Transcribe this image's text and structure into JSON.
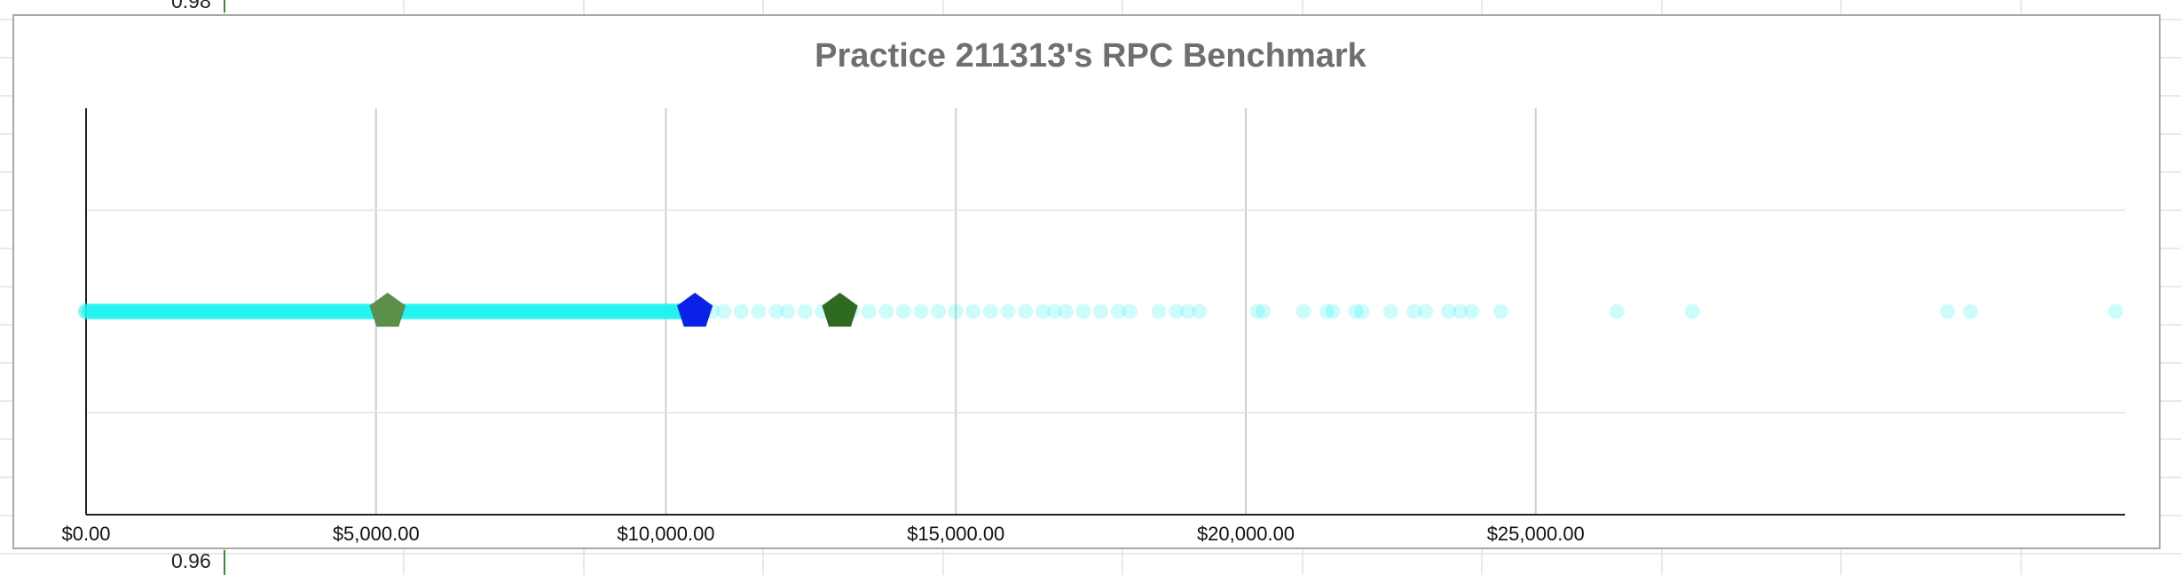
{
  "spreadsheet": {
    "row_labels": [
      "0.98",
      "0.96"
    ]
  },
  "colors": {
    "points": "#1df2ee",
    "practice_marker": "#0a22e8",
    "benchmark_light": "#5b8f4a",
    "benchmark_dark": "#2f6a23",
    "gridline": "#cfcfcf",
    "axis": "#222222",
    "title": "#6f6f6f",
    "frame": "#a8a8a8"
  },
  "chart_data": {
    "type": "scatter",
    "title": "Practice 211313's RPC Benchmark",
    "xlabel": "",
    "ylabel": "",
    "x_tick_labels": [
      "$0.00",
      "$5,000.00",
      "$10,000.00",
      "$15,000.00",
      "$20,000.00",
      "$25,000.00"
    ],
    "x_ticks": [
      0,
      5000,
      10000,
      15000,
      20000,
      25000
    ],
    "xlim": [
      0,
      35200
    ],
    "y_value": 1,
    "grid": true,
    "legend": "none",
    "points": {
      "dense_range": [
        0,
        10500
      ],
      "sparse_x": [
        10800,
        11000,
        11300,
        11600,
        11900,
        12100,
        12400,
        12700,
        13200,
        13500,
        13800,
        14100,
        14400,
        14700,
        15000,
        15300,
        15600,
        15900,
        16200,
        16500,
        16700,
        16900,
        17200,
        17500,
        17800,
        18000,
        18500,
        18800,
        19000,
        19200,
        20200,
        20300,
        21000,
        21400,
        21500,
        21900,
        22000,
        22500,
        22900,
        23100,
        23500,
        23700,
        23900,
        24400,
        26400,
        27700,
        32100,
        32500,
        35000
      ]
    },
    "markers": [
      {
        "x": 5200,
        "color_key": "benchmark_light"
      },
      {
        "x": 10500,
        "color_key": "practice_marker"
      },
      {
        "x": 13000,
        "color_key": "benchmark_dark"
      }
    ]
  }
}
